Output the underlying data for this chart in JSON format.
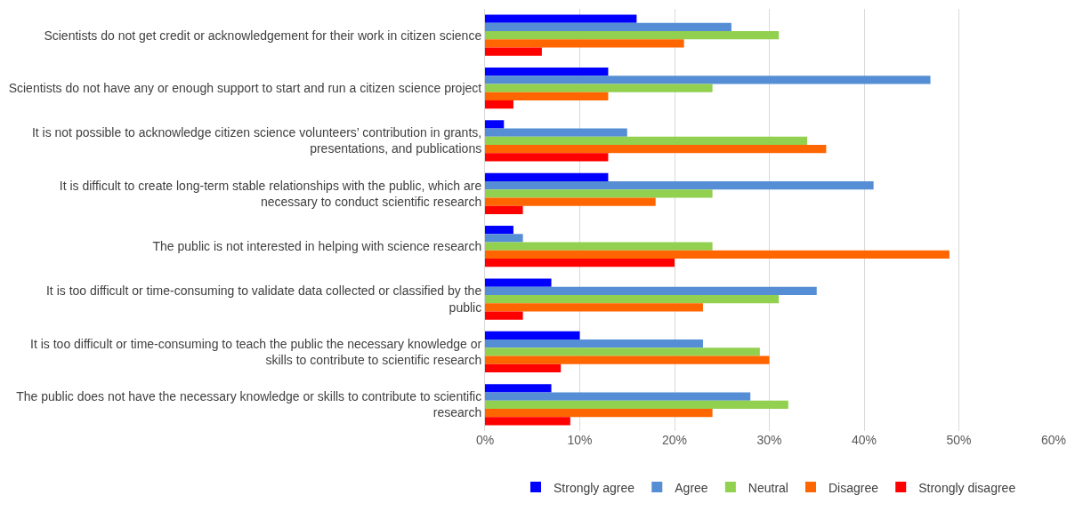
{
  "chart_data": {
    "type": "bar",
    "orientation": "horizontal",
    "categories": [
      "Scientists do not get credit or acknowledgement for their work in citizen science",
      "Scientists do not have any or enough support to start and run a citizen science project",
      "It is not possible to acknowledge citizen science volunteers’ contribution in grants, presentations, and publications",
      "It is difficult to create long-term stable relationships with the public, which are necessary to conduct scientific research",
      "The public is not interested in helping with science research",
      "It is too difficult or time-consuming to validate data collected or classified by the public",
      "It is too difficult or time-consuming to teach the public the necessary knowledge or skills to contribute to scientific research",
      "The public does not have the necessary knowledge or skills to contribute to scientific research"
    ],
    "series": [
      {
        "name": "Strongly agree",
        "color": "#0000ff",
        "values": [
          16,
          13,
          2,
          13,
          3,
          7,
          10,
          7
        ]
      },
      {
        "name": "Agree",
        "color": "#558ed5",
        "values": [
          26,
          47,
          15,
          41,
          4,
          35,
          23,
          28
        ]
      },
      {
        "name": "Neutral",
        "color": "#92d050",
        "values": [
          31,
          24,
          34,
          24,
          24,
          31,
          29,
          32
        ]
      },
      {
        "name": "Disagree",
        "color": "#ff6600",
        "values": [
          21,
          13,
          36,
          18,
          49,
          23,
          30,
          24
        ]
      },
      {
        "name": "Strongly disagree",
        "color": "#ff0000",
        "values": [
          6,
          3,
          13,
          4,
          20,
          4,
          8,
          9
        ]
      }
    ],
    "xlim": [
      0,
      60
    ],
    "xticks": [
      {
        "value": 0,
        "label": "0%"
      },
      {
        "value": 10,
        "label": "10%"
      },
      {
        "value": 20,
        "label": "20%"
      },
      {
        "value": 30,
        "label": "30%"
      },
      {
        "value": 40,
        "label": "40%"
      },
      {
        "value": 50,
        "label": "50%"
      },
      {
        "value": 60,
        "label": "60%"
      }
    ],
    "grid": "x",
    "legend": "bottom"
  }
}
